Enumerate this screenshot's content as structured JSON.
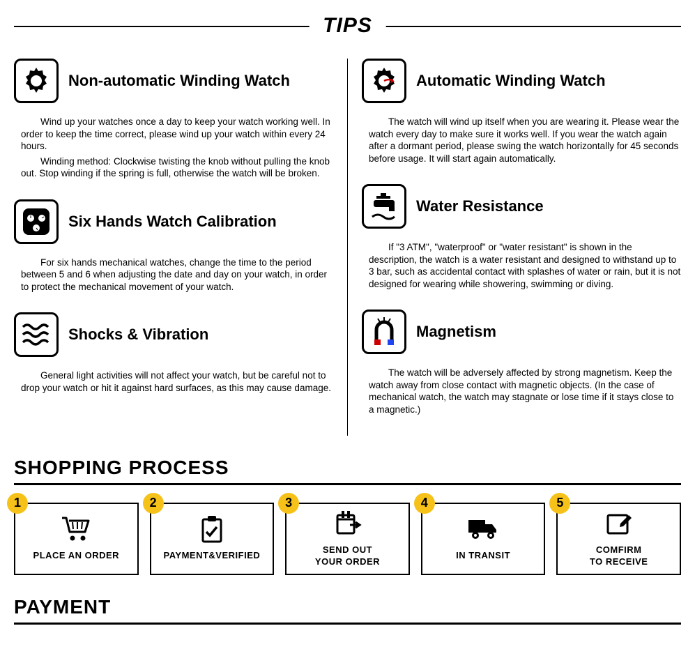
{
  "tips": {
    "title": "TIPS",
    "left": [
      {
        "icon": "gear",
        "title": "Non-automatic Winding Watch",
        "paragraphs": [
          "Wind up your watches once a day to keep your watch working well. In order to keep the time correct, please wind up your watch within every 24 hours.",
          "Winding method: Clockwise twisting the knob without pulling the knob out. Stop winding if the spring is full, otherwise the watch will be broken."
        ]
      },
      {
        "icon": "sixhands",
        "title": "Six Hands Watch Calibration",
        "paragraphs": [
          "For six hands mechanical watches, change the time to the period between 5 and 6 when adjusting the date and day on your watch, in order to protect the mechanical movement of your watch."
        ]
      },
      {
        "icon": "waves",
        "title": "Shocks & Vibration",
        "paragraphs": [
          "General light activities will not affect your watch, but be careful not to drop your watch or hit it against hard surfaces, as this may cause damage."
        ]
      }
    ],
    "right": [
      {
        "icon": "gear-red",
        "title": "Automatic Winding Watch",
        "paragraphs": [
          "The watch will wind up itself when you are wearing it. Please wear the watch every day to make sure it works well. If you wear the watch again after a dormant period, please swing the watch horizontally for 45 seconds before usage. It will start again automatically."
        ]
      },
      {
        "icon": "tap",
        "title": "Water Resistance",
        "paragraphs": [
          "If \"3 ATM\", \"waterproof\" or \"water resistant\" is shown in the description, the watch is a water resistant and designed to withstand up to 3 bar, such as accidental contact with splashes of water or rain, but it is not designed for wearing while showering, swimming or diving."
        ]
      },
      {
        "icon": "magnet",
        "title": "Magnetism",
        "paragraphs": [
          "The watch will be adversely affected by strong magnetism. Keep the watch away from close contact with magnetic objects. (In the case of mechanical watch, the watch may stagnate or lose time if it stays close to a magnetic.)"
        ]
      }
    ]
  },
  "shopping": {
    "title": "SHOPPING PROCESS",
    "badge_color": "#f6c219",
    "steps": [
      {
        "num": "1",
        "icon": "cart",
        "label": "PLACE AN ORDER"
      },
      {
        "num": "2",
        "icon": "clipboard",
        "label": "PAYMENT&VERIFIED"
      },
      {
        "num": "3",
        "icon": "sendout",
        "label": "SEND OUT\nYOUR ORDER"
      },
      {
        "num": "4",
        "icon": "truck",
        "label": "IN TRANSIT"
      },
      {
        "num": "5",
        "icon": "confirm",
        "label": "COMFIRM\nTO RECEIVE"
      }
    ]
  },
  "payment": {
    "title": "PAYMENT"
  }
}
